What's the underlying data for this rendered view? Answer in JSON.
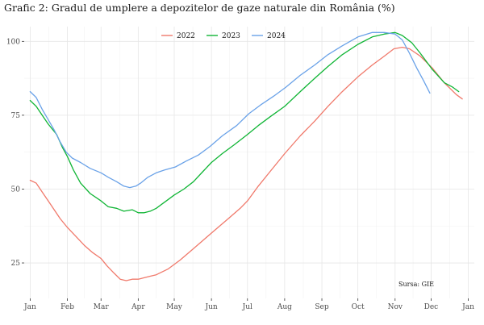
{
  "chart_data": {
    "type": "line",
    "title": "Grafic 2: Gradul de umplere a depozitelor de gaze naturale din România (%)",
    "xlabel": "",
    "ylabel": "",
    "x_ticks": [
      "Jan",
      "Feb",
      "Mar",
      "Apr",
      "May",
      "Jun",
      "Jul",
      "Aug",
      "Sep",
      "Oct",
      "Nov",
      "Dec",
      "Jan"
    ],
    "y_ticks": [
      25,
      50,
      75,
      100
    ],
    "ylim": [
      13,
      105
    ],
    "xlim_days": [
      -5,
      370
    ],
    "grid": true,
    "legend_position": "top-center",
    "annotation": "Sursa: GIE",
    "series": [
      {
        "name": "2022",
        "color": "#f0796b",
        "points": [
          [
            0,
            53
          ],
          [
            5,
            52
          ],
          [
            10,
            49
          ],
          [
            15,
            46
          ],
          [
            20,
            43
          ],
          [
            25,
            40
          ],
          [
            31,
            37
          ],
          [
            38,
            34
          ],
          [
            45,
            31
          ],
          [
            52,
            28.5
          ],
          [
            59,
            26.5
          ],
          [
            64,
            24
          ],
          [
            70,
            21.5
          ],
          [
            75,
            19.5
          ],
          [
            80,
            19
          ],
          [
            85,
            19.5
          ],
          [
            90,
            19.5
          ],
          [
            95,
            20
          ],
          [
            100,
            20.5
          ],
          [
            105,
            21
          ],
          [
            115,
            23
          ],
          [
            125,
            26
          ],
          [
            135,
            29.5
          ],
          [
            145,
            33
          ],
          [
            155,
            36.5
          ],
          [
            165,
            40
          ],
          [
            175,
            43.5
          ],
          [
            181,
            46
          ],
          [
            190,
            51
          ],
          [
            200,
            56
          ],
          [
            212,
            62
          ],
          [
            225,
            68
          ],
          [
            237,
            73
          ],
          [
            248,
            78
          ],
          [
            260,
            83
          ],
          [
            273,
            88
          ],
          [
            285,
            92
          ],
          [
            295,
            95
          ],
          [
            303,
            97.5
          ],
          [
            310,
            98
          ],
          [
            316,
            97.5
          ],
          [
            325,
            95
          ],
          [
            335,
            91
          ],
          [
            345,
            86
          ],
          [
            355,
            82
          ],
          [
            360,
            80.5
          ]
        ]
      },
      {
        "name": "2023",
        "color": "#10b535",
        "points": [
          [
            0,
            80
          ],
          [
            5,
            78
          ],
          [
            10,
            75
          ],
          [
            15,
            72
          ],
          [
            22,
            68.5
          ],
          [
            27,
            64
          ],
          [
            31,
            61
          ],
          [
            36,
            56.5
          ],
          [
            42,
            52
          ],
          [
            50,
            48.5
          ],
          [
            59,
            46
          ],
          [
            65,
            44
          ],
          [
            72,
            43.5
          ],
          [
            78,
            42.5
          ],
          [
            85,
            43
          ],
          [
            90,
            42
          ],
          [
            95,
            42
          ],
          [
            100,
            42.5
          ],
          [
            105,
            43.5
          ],
          [
            110,
            45
          ],
          [
            115,
            46.5
          ],
          [
            120,
            48
          ],
          [
            128,
            50
          ],
          [
            136,
            52.5
          ],
          [
            144,
            56
          ],
          [
            151,
            59
          ],
          [
            160,
            62
          ],
          [
            170,
            65
          ],
          [
            181,
            68.5
          ],
          [
            190,
            71.5
          ],
          [
            200,
            74.5
          ],
          [
            212,
            78
          ],
          [
            225,
            83
          ],
          [
            237,
            87.5
          ],
          [
            248,
            91.5
          ],
          [
            260,
            95.5
          ],
          [
            273,
            99
          ],
          [
            285,
            101.5
          ],
          [
            295,
            102.5
          ],
          [
            304,
            103
          ],
          [
            310,
            102
          ],
          [
            318,
            99.5
          ],
          [
            325,
            96
          ],
          [
            335,
            90.5
          ],
          [
            345,
            86
          ],
          [
            352,
            84.5
          ],
          [
            357,
            83
          ]
        ]
      },
      {
        "name": "2024",
        "color": "#6aa2e8",
        "points": [
          [
            0,
            83
          ],
          [
            5,
            81
          ],
          [
            10,
            77
          ],
          [
            15,
            73.5
          ],
          [
            20,
            70
          ],
          [
            25,
            66
          ],
          [
            30,
            62.5
          ],
          [
            35,
            60.5
          ],
          [
            42,
            59
          ],
          [
            50,
            57
          ],
          [
            59,
            55.5
          ],
          [
            65,
            54
          ],
          [
            72,
            52.5
          ],
          [
            78,
            51
          ],
          [
            83,
            50.5
          ],
          [
            88,
            51
          ],
          [
            92,
            52
          ],
          [
            98,
            54
          ],
          [
            105,
            55.5
          ],
          [
            112,
            56.5
          ],
          [
            121,
            57.5
          ],
          [
            130,
            59.5
          ],
          [
            140,
            61.5
          ],
          [
            150,
            64.5
          ],
          [
            160,
            68
          ],
          [
            172,
            71.5
          ],
          [
            182,
            75.5
          ],
          [
            192,
            78.5
          ],
          [
            203,
            81.5
          ],
          [
            213,
            84.5
          ],
          [
            225,
            88.5
          ],
          [
            237,
            92
          ],
          [
            248,
            95.5
          ],
          [
            260,
            98.5
          ],
          [
            273,
            101.5
          ],
          [
            285,
            103
          ],
          [
            295,
            103
          ],
          [
            304,
            102.5
          ],
          [
            310,
            100.5
          ],
          [
            316,
            96
          ],
          [
            322,
            91
          ],
          [
            328,
            86.5
          ],
          [
            333,
            82.5
          ]
        ]
      }
    ]
  }
}
